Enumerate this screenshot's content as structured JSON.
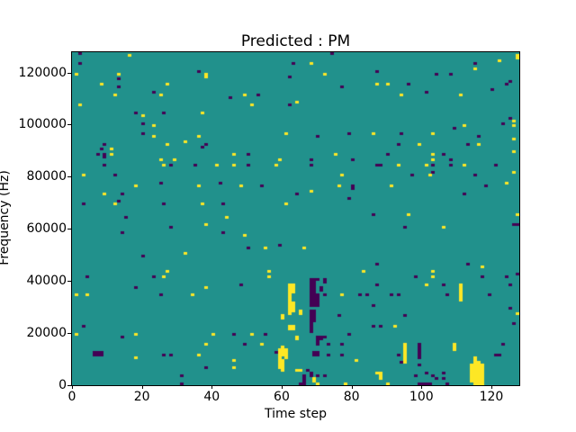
{
  "chart_data": {
    "type": "heatmap",
    "title": "Predicted : PM",
    "xlabel": "Time step",
    "ylabel": "Frequency (Hz)",
    "x_range": [
      0,
      128
    ],
    "y_range": [
      0,
      128000
    ],
    "x_ticks": [
      0,
      20,
      40,
      60,
      80,
      100,
      120
    ],
    "y_ticks": [
      0,
      20000,
      40000,
      60000,
      80000,
      100000,
      120000
    ],
    "grid": {
      "time_steps": 128,
      "freq_bins": 128,
      "bin_hz": 1000,
      "gridlines": false
    },
    "legend_position": "none",
    "colors": {
      "mid_background": "#21918c",
      "high": "#fde725",
      "low": "#440154",
      "axis": "#000000",
      "figure_background": "#ffffff"
    },
    "cells_high": [
      [
        16,
        126
      ],
      [
        1,
        119
      ],
      [
        13,
        119
      ],
      [
        38,
        119
      ],
      [
        38,
        118
      ],
      [
        8,
        115
      ],
      [
        27,
        115
      ],
      [
        12,
        111
      ],
      [
        25,
        111
      ],
      [
        2,
        107
      ],
      [
        20,
        103
      ],
      [
        37,
        104
      ],
      [
        23,
        99
      ],
      [
        23,
        95
      ],
      [
        27,
        92
      ],
      [
        32,
        93
      ],
      [
        36,
        95
      ],
      [
        11,
        90
      ],
      [
        11,
        88
      ],
      [
        25,
        86
      ],
      [
        29,
        86
      ],
      [
        68,
        123
      ],
      [
        72,
        119
      ],
      [
        49,
        111
      ],
      [
        51,
        107
      ],
      [
        64,
        108
      ],
      [
        61,
        96
      ],
      [
        46,
        88
      ],
      [
        75,
        88
      ],
      [
        59,
        86
      ],
      [
        122,
        124
      ],
      [
        115,
        121
      ],
      [
        87,
        115
      ],
      [
        90,
        115
      ],
      [
        94,
        111
      ],
      [
        111,
        111
      ],
      [
        112,
        99
      ],
      [
        86,
        96
      ],
      [
        103,
        96
      ],
      [
        99,
        92
      ],
      [
        116,
        92
      ],
      [
        126,
        94
      ],
      [
        103,
        88
      ],
      [
        103,
        86
      ],
      [
        127,
        125
      ],
      [
        127,
        126
      ],
      [
        126,
        99
      ],
      [
        126,
        101
      ],
      [
        3,
        80
      ],
      [
        26,
        84
      ],
      [
        41,
        84
      ],
      [
        18,
        76
      ],
      [
        9,
        73
      ],
      [
        12,
        69
      ],
      [
        36,
        76
      ],
      [
        37,
        69
      ],
      [
        38,
        61
      ],
      [
        32,
        50
      ],
      [
        27,
        43
      ],
      [
        46,
        84
      ],
      [
        58,
        84
      ],
      [
        48,
        76
      ],
      [
        77,
        80
      ],
      [
        76,
        76
      ],
      [
        68,
        74
      ],
      [
        61,
        69
      ],
      [
        44,
        64
      ],
      [
        49,
        57
      ],
      [
        55,
        52
      ],
      [
        66,
        52
      ],
      [
        56,
        43
      ],
      [
        83,
        43
      ],
      [
        93,
        84
      ],
      [
        101,
        84
      ],
      [
        112,
        84
      ],
      [
        102,
        80
      ],
      [
        91,
        76
      ],
      [
        124,
        77
      ],
      [
        96,
        65
      ],
      [
        106,
        60
      ],
      [
        127,
        65
      ],
      [
        117,
        45
      ],
      [
        103,
        43
      ],
      [
        126,
        89
      ],
      [
        126,
        81
      ],
      [
        127,
        27
      ],
      [
        26,
        41
      ],
      [
        1,
        34
      ],
      [
        4,
        34
      ],
      [
        34,
        34
      ],
      [
        38,
        37
      ],
      [
        1,
        19
      ],
      [
        18,
        19
      ],
      [
        40,
        19
      ],
      [
        38,
        15
      ],
      [
        18,
        10
      ],
      [
        36,
        11
      ],
      [
        56,
        41
      ],
      [
        51,
        19
      ],
      [
        54,
        15
      ],
      [
        46,
        9
      ],
      [
        46,
        6
      ],
      [
        77,
        34
      ],
      [
        81,
        9
      ],
      [
        103,
        41
      ],
      [
        101,
        38
      ],
      [
        92,
        22
      ],
      [
        111,
        32
      ],
      [
        111,
        33
      ],
      [
        111,
        34
      ],
      [
        111,
        35
      ],
      [
        111,
        36
      ],
      [
        111,
        37
      ],
      [
        111,
        38
      ],
      [
        95,
        8
      ],
      [
        95,
        9
      ],
      [
        95,
        10
      ],
      [
        95,
        11
      ],
      [
        95,
        12
      ],
      [
        95,
        13
      ],
      [
        95,
        14
      ],
      [
        95,
        15
      ],
      [
        109,
        13
      ],
      [
        109,
        14
      ],
      [
        109,
        15
      ],
      [
        88,
        2
      ],
      [
        88,
        3
      ],
      [
        88,
        4
      ],
      [
        87,
        4
      ],
      [
        62,
        35
      ],
      [
        62,
        36
      ],
      [
        62,
        37
      ],
      [
        62,
        38
      ],
      [
        63,
        35
      ],
      [
        63,
        36
      ],
      [
        63,
        37
      ],
      [
        63,
        38
      ],
      [
        62,
        27
      ],
      [
        62,
        28
      ],
      [
        62,
        29
      ],
      [
        62,
        30
      ],
      [
        62,
        31
      ],
      [
        62,
        32
      ],
      [
        62,
        33
      ],
      [
        62,
        34
      ],
      [
        63,
        28
      ],
      [
        63,
        29
      ],
      [
        63,
        30
      ],
      [
        63,
        31
      ],
      [
        65,
        27
      ],
      [
        65,
        28
      ],
      [
        60,
        25
      ],
      [
        60,
        26
      ],
      [
        62,
        21
      ],
      [
        62,
        22
      ],
      [
        63,
        21
      ],
      [
        63,
        22
      ],
      [
        64,
        17
      ],
      [
        64,
        18
      ],
      [
        59,
        6
      ],
      [
        59,
        7
      ],
      [
        59,
        8
      ],
      [
        59,
        9
      ],
      [
        59,
        10
      ],
      [
        59,
        11
      ],
      [
        59,
        12
      ],
      [
        59,
        13
      ],
      [
        60,
        5
      ],
      [
        60,
        6
      ],
      [
        60,
        7
      ],
      [
        60,
        8
      ],
      [
        60,
        9
      ],
      [
        60,
        11
      ],
      [
        60,
        12
      ],
      [
        60,
        13
      ],
      [
        60,
        14
      ],
      [
        61,
        10
      ],
      [
        61,
        11
      ],
      [
        61,
        12
      ],
      [
        61,
        13
      ],
      [
        64,
        5
      ],
      [
        65,
        5
      ],
      [
        69,
        1
      ],
      [
        69,
        2
      ],
      [
        114,
        1
      ],
      [
        114,
        2
      ],
      [
        114,
        3
      ],
      [
        114,
        4
      ],
      [
        114,
        5
      ],
      [
        114,
        6
      ],
      [
        114,
        7
      ],
      [
        115,
        1
      ],
      [
        115,
        2
      ],
      [
        115,
        3
      ],
      [
        115,
        4
      ],
      [
        115,
        5
      ],
      [
        115,
        6
      ],
      [
        115,
        7
      ],
      [
        115,
        8
      ],
      [
        115,
        9
      ],
      [
        115,
        10
      ],
      [
        116,
        1
      ],
      [
        116,
        2
      ],
      [
        116,
        3
      ],
      [
        116,
        4
      ],
      [
        116,
        5
      ],
      [
        116,
        6
      ],
      [
        116,
        7
      ],
      [
        116,
        8
      ],
      [
        117,
        1
      ],
      [
        117,
        2
      ],
      [
        117,
        3
      ],
      [
        117,
        4
      ],
      [
        117,
        5
      ],
      [
        117,
        6
      ],
      [
        117,
        7
      ],
      [
        70,
        0
      ],
      [
        78,
        0
      ],
      [
        90,
        0
      ],
      [
        115,
        0
      ],
      [
        116,
        0
      ],
      [
        117,
        0
      ]
    ],
    "cells_low": [
      [
        2,
        127
      ],
      [
        2,
        123
      ],
      [
        13,
        117
      ],
      [
        13,
        114
      ],
      [
        23,
        112
      ],
      [
        36,
        120
      ],
      [
        18,
        104
      ],
      [
        20,
        100
      ],
      [
        26,
        104
      ],
      [
        20,
        96
      ],
      [
        9,
        92
      ],
      [
        8,
        90
      ],
      [
        7,
        88
      ],
      [
        9,
        88
      ],
      [
        9,
        87
      ],
      [
        37,
        91
      ],
      [
        38,
        92
      ],
      [
        74,
        127
      ],
      [
        63,
        123
      ],
      [
        62,
        118
      ],
      [
        77,
        114
      ],
      [
        45,
        110
      ],
      [
        53,
        111
      ],
      [
        62,
        107
      ],
      [
        70,
        95
      ],
      [
        79,
        96
      ],
      [
        50,
        88
      ],
      [
        68,
        86
      ],
      [
        80,
        86
      ],
      [
        115,
        123
      ],
      [
        87,
        120
      ],
      [
        104,
        119
      ],
      [
        108,
        119
      ],
      [
        96,
        115
      ],
      [
        124,
        115
      ],
      [
        101,
        112
      ],
      [
        120,
        113
      ],
      [
        109,
        98
      ],
      [
        123,
        100
      ],
      [
        94,
        96
      ],
      [
        116,
        95
      ],
      [
        93,
        92
      ],
      [
        113,
        92
      ],
      [
        90,
        88
      ],
      [
        106,
        88
      ],
      [
        108,
        86
      ],
      [
        125,
        116
      ],
      [
        125,
        102
      ],
      [
        9,
        84
      ],
      [
        28,
        84
      ],
      [
        35,
        84
      ],
      [
        12,
        80
      ],
      [
        14,
        73
      ],
      [
        13,
        70
      ],
      [
        3,
        69
      ],
      [
        25,
        77
      ],
      [
        26,
        69
      ],
      [
        15,
        64
      ],
      [
        14,
        58
      ],
      [
        28,
        60
      ],
      [
        20,
        49
      ],
      [
        42,
        77
      ],
      [
        50,
        84
      ],
      [
        68,
        84
      ],
      [
        54,
        76
      ],
      [
        64,
        73
      ],
      [
        80,
        75
      ],
      [
        80,
        76
      ],
      [
        79,
        71
      ],
      [
        43,
        69
      ],
      [
        43,
        58
      ],
      [
        50,
        52
      ],
      [
        59,
        53
      ],
      [
        87,
        84
      ],
      [
        88,
        84
      ],
      [
        103,
        84
      ],
      [
        108,
        84
      ],
      [
        121,
        84
      ],
      [
        97,
        80
      ],
      [
        103,
        81
      ],
      [
        115,
        80
      ],
      [
        118,
        76
      ],
      [
        112,
        73
      ],
      [
        95,
        60
      ],
      [
        126,
        61
      ],
      [
        86,
        65
      ],
      [
        87,
        46
      ],
      [
        113,
        46
      ],
      [
        127,
        61
      ],
      [
        127,
        42
      ],
      [
        4,
        41
      ],
      [
        23,
        41
      ],
      [
        18,
        37
      ],
      [
        25,
        34
      ],
      [
        3,
        22
      ],
      [
        14,
        18
      ],
      [
        6,
        11
      ],
      [
        7,
        11
      ],
      [
        8,
        11
      ],
      [
        6,
        12
      ],
      [
        7,
        12
      ],
      [
        8,
        12
      ],
      [
        26,
        11
      ],
      [
        28,
        11
      ],
      [
        31,
        3
      ],
      [
        38,
        6
      ],
      [
        48,
        38
      ],
      [
        72,
        34
      ],
      [
        82,
        34
      ],
      [
        84,
        34
      ],
      [
        76,
        26
      ],
      [
        46,
        19
      ],
      [
        55,
        19
      ],
      [
        49,
        15
      ],
      [
        58,
        12
      ],
      [
        73,
        15
      ],
      [
        77,
        15
      ],
      [
        73,
        11
      ],
      [
        77,
        11
      ],
      [
        79,
        19
      ],
      [
        98,
        41
      ],
      [
        117,
        41
      ],
      [
        124,
        41
      ],
      [
        87,
        38
      ],
      [
        106,
        38
      ],
      [
        125,
        38
      ],
      [
        91,
        34
      ],
      [
        93,
        34
      ],
      [
        107,
        34
      ],
      [
        119,
        34
      ],
      [
        86,
        30
      ],
      [
        95,
        26
      ],
      [
        125,
        29
      ],
      [
        86,
        22
      ],
      [
        88,
        22
      ],
      [
        126,
        23
      ],
      [
        123,
        15
      ],
      [
        99,
        7
      ],
      [
        99,
        10
      ],
      [
        99,
        11
      ],
      [
        99,
        12
      ],
      [
        99,
        13
      ],
      [
        99,
        14
      ],
      [
        99,
        15
      ],
      [
        98,
        3
      ],
      [
        93,
        11
      ],
      [
        94,
        8
      ],
      [
        101,
        4
      ],
      [
        103,
        3
      ],
      [
        104,
        2
      ],
      [
        106,
        4
      ],
      [
        106,
        2
      ],
      [
        121,
        11
      ],
      [
        122,
        11
      ],
      [
        68,
        40
      ],
      [
        69,
        40
      ],
      [
        70,
        40
      ],
      [
        68,
        30
      ],
      [
        68,
        31
      ],
      [
        68,
        32
      ],
      [
        68,
        33
      ],
      [
        68,
        34
      ],
      [
        68,
        35
      ],
      [
        68,
        36
      ],
      [
        68,
        37
      ],
      [
        68,
        38
      ],
      [
        68,
        39
      ],
      [
        69,
        30
      ],
      [
        69,
        31
      ],
      [
        69,
        32
      ],
      [
        69,
        33
      ],
      [
        69,
        34
      ],
      [
        69,
        35
      ],
      [
        69,
        36
      ],
      [
        69,
        37
      ],
      [
        69,
        38
      ],
      [
        69,
        39
      ],
      [
        70,
        30
      ],
      [
        70,
        31
      ],
      [
        70,
        32
      ],
      [
        70,
        33
      ],
      [
        70,
        34
      ],
      [
        71,
        36
      ],
      [
        71,
        37
      ],
      [
        72,
        39
      ],
      [
        72,
        40
      ],
      [
        68,
        20
      ],
      [
        68,
        21
      ],
      [
        68,
        22
      ],
      [
        68,
        23
      ],
      [
        68,
        24
      ],
      [
        68,
        25
      ],
      [
        68,
        26
      ],
      [
        68,
        27
      ],
      [
        68,
        28
      ],
      [
        69,
        24
      ],
      [
        69,
        25
      ],
      [
        69,
        26
      ],
      [
        69,
        27
      ],
      [
        69,
        28
      ],
      [
        70,
        15
      ],
      [
        70,
        16
      ],
      [
        70,
        17
      ],
      [
        70,
        18
      ],
      [
        71,
        17
      ],
      [
        71,
        18
      ],
      [
        69,
        11
      ],
      [
        69,
        12
      ],
      [
        70,
        11
      ],
      [
        70,
        12
      ],
      [
        72,
        18
      ],
      [
        67,
        5
      ],
      [
        68,
        3
      ],
      [
        68,
        4
      ],
      [
        70,
        3
      ],
      [
        72,
        3
      ],
      [
        66,
        1
      ],
      [
        66,
        2
      ],
      [
        66,
        3
      ],
      [
        31,
        0
      ],
      [
        65,
        0
      ],
      [
        66,
        0
      ],
      [
        99,
        0
      ],
      [
        100,
        0
      ],
      [
        101,
        0
      ],
      [
        102,
        0
      ],
      [
        107,
        0
      ]
    ]
  }
}
